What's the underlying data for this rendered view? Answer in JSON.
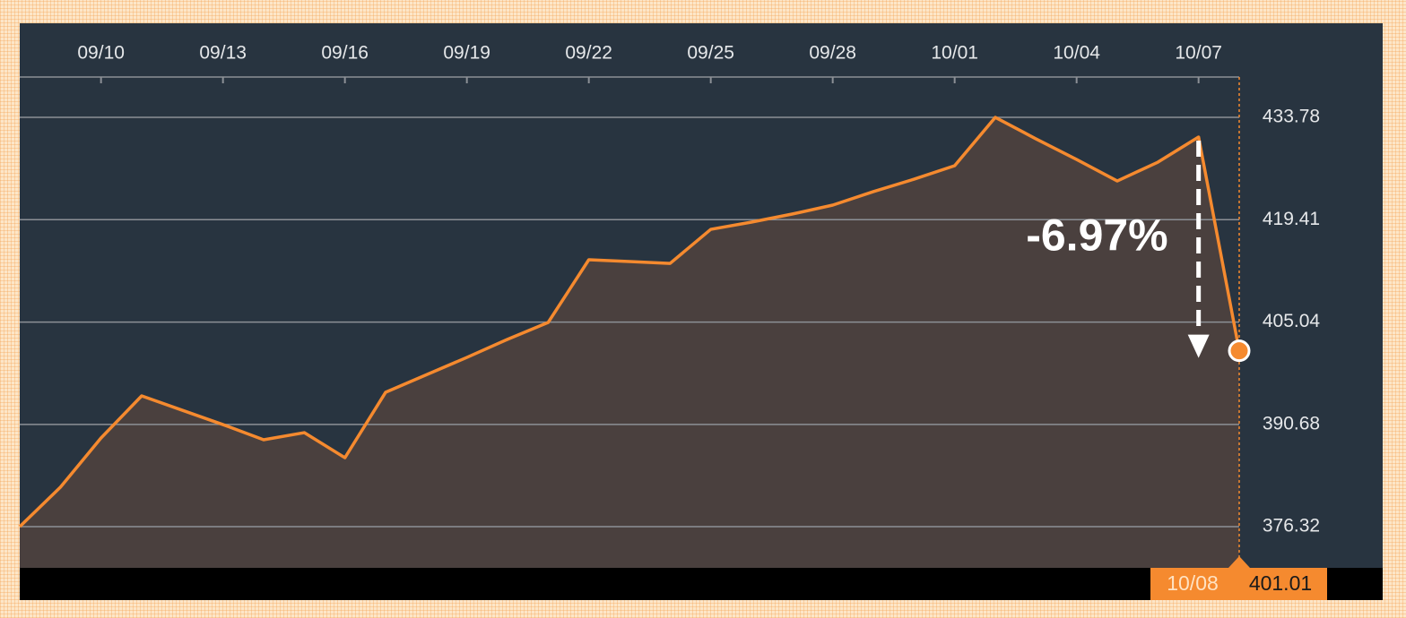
{
  "chart_data": {
    "type": "area",
    "categories": [
      null,
      null,
      "09/10",
      null,
      null,
      "09/13",
      null,
      null,
      "09/16",
      null,
      null,
      "09/19",
      null,
      null,
      "09/22",
      null,
      null,
      "09/25",
      null,
      null,
      "09/28",
      null,
      null,
      "10/01",
      null,
      null,
      "10/04",
      null,
      null,
      "10/07",
      "10/08"
    ],
    "values": [
      376.32,
      381.85,
      388.77,
      394.68,
      392.66,
      390.65,
      388.52,
      389.52,
      386.0,
      395.18,
      397.63,
      400.08,
      402.62,
      404.99,
      413.79,
      413.54,
      413.28,
      418.06,
      419.07,
      420.2,
      421.46,
      423.35,
      425.1,
      426.99,
      433.78,
      430.76,
      427.87,
      424.85,
      427.49,
      431.01,
      401.01
    ],
    "color": "#f58a2f",
    "ylim": [
      370.54,
      439.44
    ],
    "yticks": [
      376.32,
      390.68,
      405.04,
      419.41,
      433.78
    ],
    "grid": true,
    "annotation": "-6.97%"
  }
}
